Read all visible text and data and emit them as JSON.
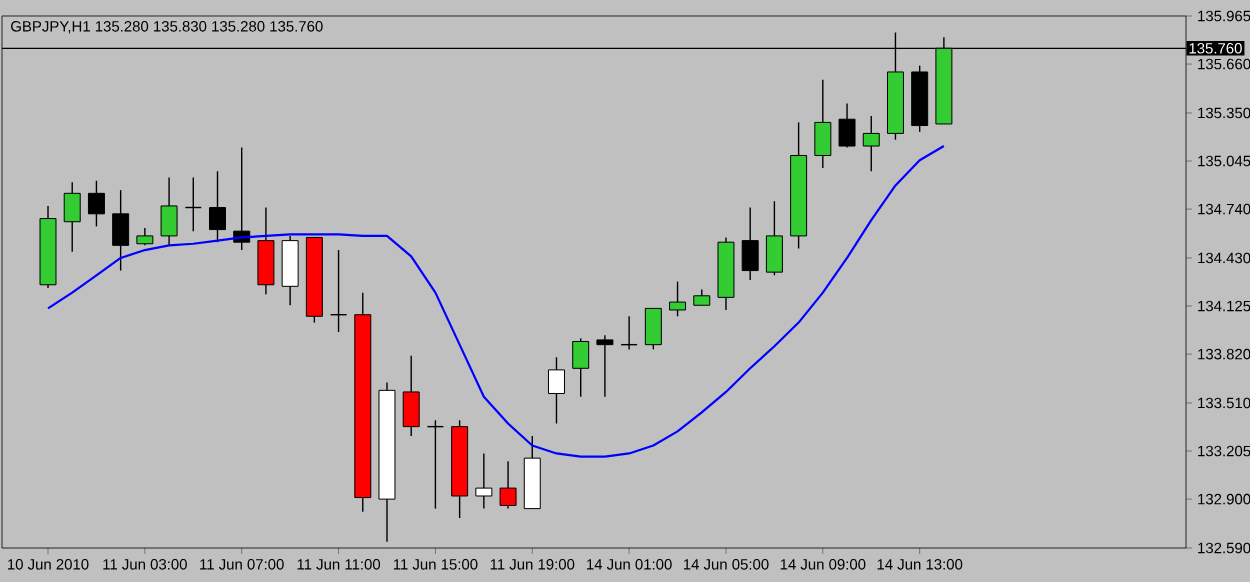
{
  "chart_data": {
    "type": "candlestick",
    "title": "GBPJPY,H1  135.280 135.830 135.280 135.760",
    "categories": [
      "10 Jun 2010",
      null,
      null,
      null,
      "11 Jun 03:00",
      null,
      null,
      null,
      "11 Jun 07:00",
      null,
      null,
      null,
      "11 Jun 11:00",
      null,
      null,
      null,
      "11 Jun 15:00",
      null,
      null,
      null,
      "11 Jun 19:00",
      null,
      null,
      null,
      "14 Jun 01:00",
      null,
      null,
      null,
      "14 Jun 05:00",
      null,
      null,
      null,
      "14 Jun 09:00",
      null,
      null,
      null,
      "14 Jun 13:00",
      null
    ],
    "ohlc": [
      [
        134.26,
        134.76,
        134.24,
        134.68
      ],
      [
        134.66,
        134.91,
        134.47,
        134.84
      ],
      [
        134.84,
        134.92,
        134.63,
        134.71
      ],
      [
        134.71,
        134.86,
        134.35,
        134.51
      ],
      [
        134.52,
        134.62,
        134.51,
        134.57
      ],
      [
        134.57,
        134.94,
        134.51,
        134.76
      ],
      [
        134.75,
        134.94,
        134.6,
        134.75
      ],
      [
        134.75,
        134.98,
        134.53,
        134.61
      ],
      [
        134.6,
        135.13,
        134.48,
        134.53
      ],
      [
        134.54,
        134.75,
        134.2,
        134.26
      ],
      [
        134.25,
        134.57,
        134.13,
        134.54
      ],
      [
        134.56,
        134.56,
        134.02,
        134.06
      ],
      [
        134.07,
        134.48,
        133.96,
        134.07
      ],
      [
        134.07,
        134.21,
        132.82,
        132.91
      ],
      [
        132.9,
        133.64,
        132.63,
        133.59
      ],
      [
        133.58,
        133.81,
        133.3,
        133.36
      ],
      [
        133.36,
        133.4,
        132.84,
        133.36
      ],
      [
        133.36,
        133.4,
        132.78,
        132.92
      ],
      [
        132.92,
        133.19,
        132.84,
        132.97
      ],
      [
        132.97,
        133.14,
        132.84,
        132.86
      ],
      [
        132.84,
        133.3,
        132.84,
        133.16
      ],
      [
        133.57,
        133.8,
        133.38,
        133.72
      ],
      [
        133.73,
        133.92,
        133.55,
        133.9
      ],
      [
        133.91,
        133.94,
        133.55,
        133.88
      ],
      [
        133.88,
        134.06,
        133.85,
        133.88
      ],
      [
        133.88,
        134.11,
        133.85,
        134.11
      ],
      [
        134.1,
        134.28,
        134.06,
        134.15
      ],
      [
        134.13,
        134.23,
        134.13,
        134.19
      ],
      [
        134.18,
        134.56,
        134.1,
        134.53
      ],
      [
        134.54,
        134.75,
        134.29,
        134.35
      ],
      [
        134.34,
        134.79,
        134.32,
        134.57
      ],
      [
        134.57,
        135.29,
        134.49,
        135.08
      ],
      [
        135.08,
        135.56,
        135.0,
        135.29
      ],
      [
        135.31,
        135.41,
        135.13,
        135.14
      ],
      [
        135.14,
        135.33,
        134.98,
        135.22
      ],
      [
        135.22,
        135.86,
        135.18,
        135.61
      ],
      [
        135.61,
        135.65,
        135.23,
        135.27
      ],
      [
        135.28,
        135.83,
        135.28,
        135.76
      ]
    ],
    "colors": [
      "#33cc33",
      "#33cc33",
      "#000000",
      "#000000",
      "#33cc33",
      "#33cc33",
      "#000000",
      "#000000",
      "#000000",
      "#ff0000",
      "#ffffff",
      "#ff0000",
      "#000000",
      "#ff0000",
      "#ffffff",
      "#ff0000",
      "#000000",
      "#ff0000",
      "#ffffff",
      "#ff0000",
      "#ffffff",
      "#ffffff",
      "#33cc33",
      "#000000",
      "#000000",
      "#33cc33",
      "#33cc33",
      "#33cc33",
      "#33cc33",
      "#000000",
      "#33cc33",
      "#33cc33",
      "#33cc33",
      "#000000",
      "#33cc33",
      "#33cc33",
      "#000000",
      "#33cc33"
    ],
    "series": [
      {
        "type": "line",
        "color": "#0000ff",
        "values": [
          134.11,
          134.21,
          134.32,
          134.43,
          134.48,
          134.51,
          134.52,
          134.54,
          134.56,
          134.57,
          134.58,
          134.58,
          134.58,
          134.57,
          134.57,
          134.44,
          134.21,
          133.88,
          133.55,
          133.38,
          133.24,
          133.19,
          133.17,
          133.17,
          133.19,
          133.24,
          133.33,
          133.45,
          133.58,
          133.73,
          133.87,
          134.02,
          134.21,
          134.43,
          134.67,
          134.89,
          135.05,
          135.14
        ]
      }
    ],
    "ylim": [
      132.59,
      135.965
    ],
    "yticks": [
      {
        "value": 135.965,
        "label": "135.965"
      },
      {
        "value": 135.66,
        "label": "135.660"
      },
      {
        "value": 135.35,
        "label": "135.350"
      },
      {
        "value": 135.045,
        "label": "135.045"
      },
      {
        "value": 134.74,
        "label": "134.740"
      },
      {
        "value": 134.43,
        "label": "134.430"
      },
      {
        "value": 134.125,
        "label": "134.125"
      },
      {
        "value": 133.82,
        "label": "133.820"
      },
      {
        "value": 133.51,
        "label": "133.510"
      },
      {
        "value": 133.205,
        "label": "133.205"
      },
      {
        "value": 132.9,
        "label": "132.900"
      },
      {
        "value": 132.59,
        "label": "132.590"
      }
    ],
    "ref_lines": [
      {
        "axis": "y",
        "value": 135.76,
        "label": "135.760",
        "color": "#000000"
      }
    ],
    "tick_labels": true
  }
}
